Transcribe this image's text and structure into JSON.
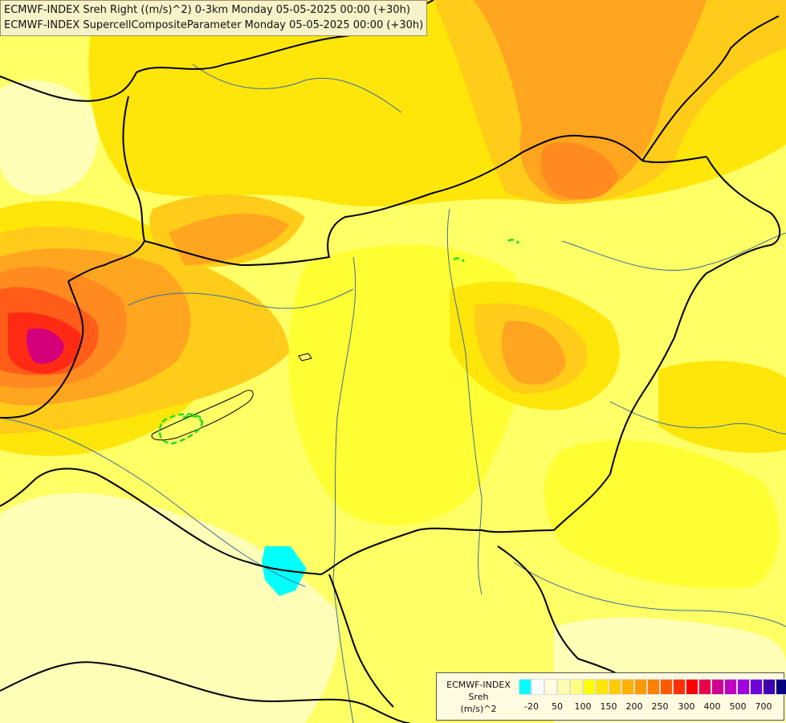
{
  "header": {
    "line1": "ECMWF-INDEX Sreh Right ((m/s)^2) 0-3km Monday 05-05-2025 00:00 (+30h)",
    "line2": "ECMWF-INDEX SupercellCompositeParameter Monday 05-05-2025 00:00 (+30h)"
  },
  "legend": {
    "line1": "ECMWF-INDEX",
    "line2": "Sreh",
    "line3": "(m/s)^2",
    "colors": [
      "#00ffff",
      "#ffffff",
      "#ffffe0",
      "#ffffb0",
      "#ffff80",
      "#ffff00",
      "#ffe500",
      "#ffcc00",
      "#ffb000",
      "#ff9a00",
      "#ff7f00",
      "#ff5a00",
      "#ff3000",
      "#ff0000",
      "#e8004a",
      "#d00090",
      "#c000c0",
      "#a000e0",
      "#7000d8",
      "#4000b0",
      "#000080"
    ],
    "ticks": [
      "-20",
      "50",
      "100",
      "150",
      "200",
      "250",
      "300",
      "400",
      "500",
      "700"
    ]
  },
  "map": {
    "colors": {
      "base": "#ffff66",
      "pale": "#ffffb8",
      "light_yellow": "#ffff33",
      "yellow": "#ffe60a",
      "gold": "#ffcc1a",
      "orange": "#ffa51f",
      "dark_orange": "#ff8a1f",
      "red_orange": "#ff5c1a",
      "red": "#ff2a14",
      "magenta": "#d4007a",
      "cyan": "#00ffff",
      "supercell_contour": "#22dd22",
      "border": "#000000",
      "river": "#3a6e9e"
    }
  }
}
